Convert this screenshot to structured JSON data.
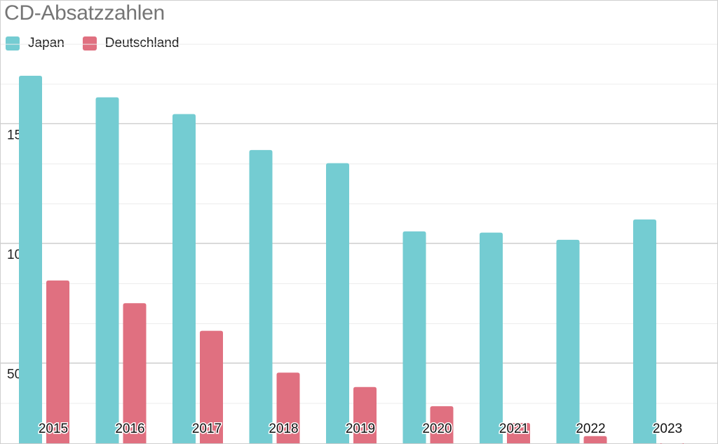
{
  "chart_data": {
    "type": "bar",
    "title": "CD-Absatzzahlen",
    "xlabel": "",
    "ylabel": "",
    "categories": [
      "2015",
      "2016",
      "2017",
      "2018",
      "2019",
      "2020",
      "2021",
      "2022",
      "2023"
    ],
    "series": [
      {
        "name": "Japan",
        "color": "#74ccd2",
        "values": [
          170,
          161,
          154,
          139,
          133.5,
          105,
          104.5,
          101.5,
          110
        ]
      },
      {
        "name": "Deutschland",
        "color": "#e07080",
        "values": [
          84.5,
          75,
          63.5,
          46,
          40,
          32,
          25,
          19.5,
          16.5
        ]
      }
    ],
    "ylim": [
      16.5,
      187
    ],
    "yticks": [
      50,
      100,
      150
    ],
    "ytick_labels": [
      "50",
      "100",
      "150"
    ],
    "minor_gridline_step": 16.6667,
    "grid": true,
    "legend_position": "top-left"
  }
}
